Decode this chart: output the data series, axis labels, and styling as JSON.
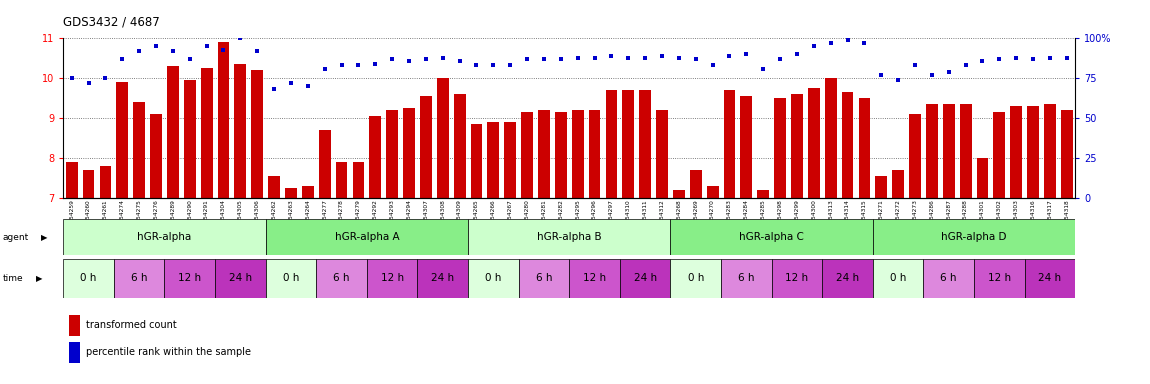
{
  "title": "GDS3432 / 4687",
  "samples": [
    "GSM154259",
    "GSM154260",
    "GSM154261",
    "GSM154274",
    "GSM154275",
    "GSM154276",
    "GSM154289",
    "GSM154290",
    "GSM154291",
    "GSM154304",
    "GSM154305",
    "GSM154306",
    "GSM154262",
    "GSM154263",
    "GSM154264",
    "GSM154277",
    "GSM154278",
    "GSM154279",
    "GSM154292",
    "GSM154293",
    "GSM154294",
    "GSM154307",
    "GSM154308",
    "GSM154309",
    "GSM154265",
    "GSM154266",
    "GSM154267",
    "GSM154280",
    "GSM154281",
    "GSM154282",
    "GSM154295",
    "GSM154296",
    "GSM154297",
    "GSM154310",
    "GSM154311",
    "GSM154312",
    "GSM154268",
    "GSM154269",
    "GSM154270",
    "GSM154283",
    "GSM154284",
    "GSM154285",
    "GSM154298",
    "GSM154299",
    "GSM154300",
    "GSM154313",
    "GSM154314",
    "GSM154315",
    "GSM154271",
    "GSM154272",
    "GSM154273",
    "GSM154286",
    "GSM154287",
    "GSM154288",
    "GSM154301",
    "GSM154302",
    "GSM154303",
    "GSM154316",
    "GSM154317",
    "GSM154318"
  ],
  "bar_values": [
    7.9,
    7.7,
    7.8,
    9.9,
    9.4,
    9.1,
    10.3,
    9.95,
    10.25,
    10.9,
    10.35,
    10.2,
    7.55,
    7.25,
    7.3,
    8.7,
    7.9,
    7.9,
    9.05,
    9.2,
    9.25,
    9.55,
    10.0,
    9.6,
    8.85,
    8.9,
    8.9,
    9.15,
    9.2,
    9.15,
    9.2,
    9.2,
    9.7,
    9.7,
    9.7,
    9.2,
    7.2,
    7.7,
    7.3,
    9.7,
    9.55,
    7.2,
    9.5,
    9.6,
    9.75,
    10.0,
    9.65,
    9.5,
    7.55,
    7.7,
    9.1,
    9.35,
    9.35,
    9.35,
    8.0,
    9.15,
    9.3,
    9.3,
    9.35,
    9.2
  ],
  "percentile_values": [
    75,
    72,
    75,
    87,
    92,
    95,
    92,
    87,
    95,
    93,
    100,
    92,
    68,
    72,
    70,
    81,
    83,
    83,
    84,
    87,
    86,
    87,
    88,
    86,
    83,
    83,
    83,
    87,
    87,
    87,
    88,
    88,
    89,
    88,
    88,
    89,
    88,
    87,
    83,
    89,
    90,
    81,
    87,
    90,
    95,
    97,
    99,
    97,
    77,
    74,
    83,
    77,
    79,
    83,
    86,
    87,
    88,
    87,
    88,
    88
  ],
  "ylim_left": [
    7,
    11
  ],
  "ylim_right": [
    0,
    100
  ],
  "yticks_left": [
    7,
    8,
    9,
    10,
    11
  ],
  "yticks_right": [
    0,
    25,
    50,
    75,
    100
  ],
  "bar_color": "#cc0000",
  "dot_color": "#0000cc",
  "agent_groups": [
    {
      "label": "hGR-alpha",
      "start": 0,
      "end": 12,
      "color": "#ccffcc"
    },
    {
      "label": "hGR-alpha A",
      "start": 12,
      "end": 24,
      "color": "#88ee88"
    },
    {
      "label": "hGR-alpha B",
      "start": 24,
      "end": 36,
      "color": "#ccffcc"
    },
    {
      "label": "hGR-alpha C",
      "start": 36,
      "end": 48,
      "color": "#88ee88"
    },
    {
      "label": "hGR-alpha D",
      "start": 48,
      "end": 60,
      "color": "#88ee88"
    }
  ],
  "time_blocks": [
    {
      "label": "0 h",
      "start": 0,
      "end": 3,
      "color": "#ddffdd"
    },
    {
      "label": "6 h",
      "start": 3,
      "end": 6,
      "color": "#dd88dd"
    },
    {
      "label": "12 h",
      "start": 6,
      "end": 9,
      "color": "#cc55cc"
    },
    {
      "label": "24 h",
      "start": 9,
      "end": 12,
      "color": "#bb33bb"
    },
    {
      "label": "0 h",
      "start": 12,
      "end": 15,
      "color": "#ddffdd"
    },
    {
      "label": "6 h",
      "start": 15,
      "end": 18,
      "color": "#dd88dd"
    },
    {
      "label": "12 h",
      "start": 18,
      "end": 21,
      "color": "#cc55cc"
    },
    {
      "label": "24 h",
      "start": 21,
      "end": 24,
      "color": "#bb33bb"
    },
    {
      "label": "0 h",
      "start": 24,
      "end": 27,
      "color": "#ddffdd"
    },
    {
      "label": "6 h",
      "start": 27,
      "end": 30,
      "color": "#dd88dd"
    },
    {
      "label": "12 h",
      "start": 30,
      "end": 33,
      "color": "#cc55cc"
    },
    {
      "label": "24 h",
      "start": 33,
      "end": 36,
      "color": "#bb33bb"
    },
    {
      "label": "0 h",
      "start": 36,
      "end": 39,
      "color": "#ddffdd"
    },
    {
      "label": "6 h",
      "start": 39,
      "end": 42,
      "color": "#dd88dd"
    },
    {
      "label": "12 h",
      "start": 42,
      "end": 45,
      "color": "#cc55cc"
    },
    {
      "label": "24 h",
      "start": 45,
      "end": 48,
      "color": "#bb33bb"
    },
    {
      "label": "0 h",
      "start": 48,
      "end": 51,
      "color": "#ddffdd"
    },
    {
      "label": "6 h",
      "start": 51,
      "end": 54,
      "color": "#dd88dd"
    },
    {
      "label": "12 h",
      "start": 54,
      "end": 57,
      "color": "#cc55cc"
    },
    {
      "label": "24 h",
      "start": 57,
      "end": 60,
      "color": "#bb33bb"
    }
  ],
  "legend_bar_label": "transformed count",
  "legend_dot_label": "percentile rank within the sample",
  "right_axis_color": "#0000cc",
  "grid_color": "#555555",
  "fig_width": 11.5,
  "fig_height": 3.84,
  "fig_dpi": 100
}
